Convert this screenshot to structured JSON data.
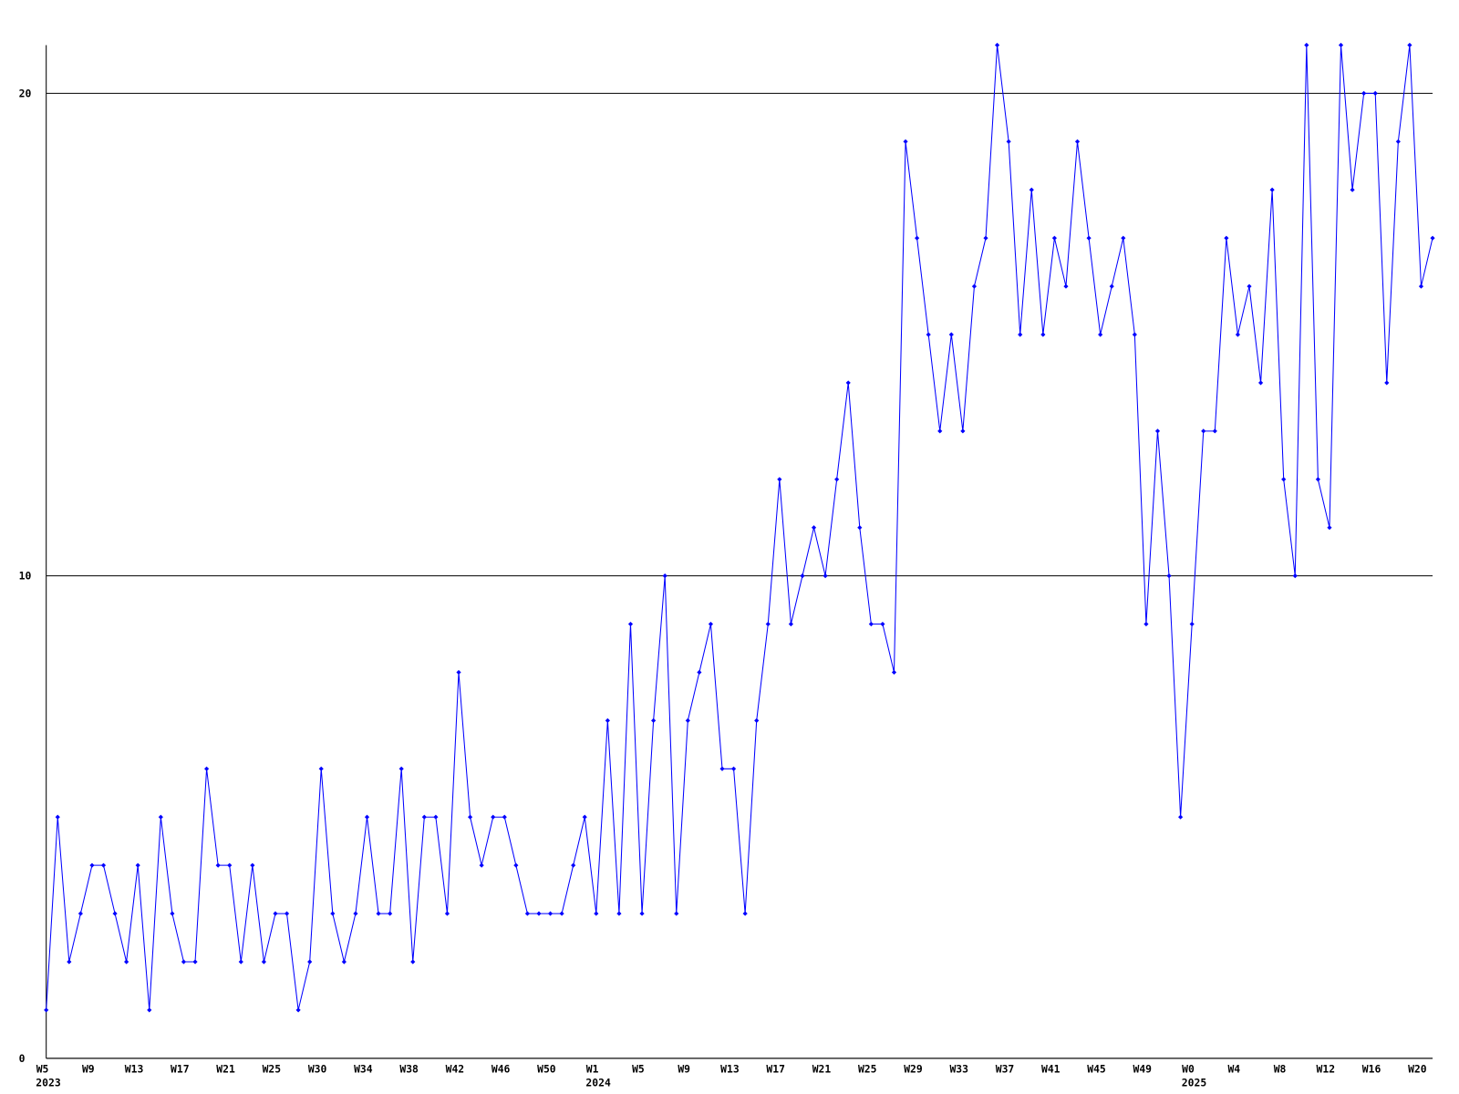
{
  "chart_data": {
    "type": "line",
    "categories": [
      "W5",
      null,
      null,
      null,
      "W9",
      null,
      null,
      null,
      "W13",
      null,
      null,
      null,
      "W17",
      null,
      null,
      null,
      "W21",
      null,
      null,
      null,
      "W25",
      null,
      null,
      null,
      "W30",
      null,
      null,
      null,
      "W34",
      null,
      null,
      null,
      "W38",
      null,
      null,
      null,
      "W42",
      null,
      null,
      null,
      "W46",
      null,
      null,
      null,
      "W50",
      null,
      null,
      null,
      "W1",
      null,
      null,
      null,
      "W5",
      null,
      null,
      null,
      "W9",
      null,
      null,
      null,
      "W13",
      null,
      null,
      null,
      "W17",
      null,
      null,
      null,
      "W21",
      null,
      null,
      null,
      "W25",
      null,
      null,
      null,
      "W29",
      null,
      null,
      null,
      "W33",
      null,
      null,
      null,
      "W37",
      null,
      null,
      null,
      "W41",
      null,
      null,
      null,
      "W45",
      null,
      null,
      null,
      "W49",
      null,
      null,
      null,
      "W0",
      null,
      null,
      null,
      "W4",
      null,
      null,
      null,
      "W8",
      null,
      null,
      null,
      "W12",
      null,
      null,
      null,
      "W16",
      null,
      null,
      null,
      "W20",
      null
    ],
    "years": [
      "2023",
      null,
      null,
      null,
      null,
      null,
      null,
      null,
      null,
      null,
      null,
      null,
      null,
      null,
      null,
      null,
      null,
      null,
      null,
      null,
      null,
      null,
      null,
      null,
      null,
      null,
      null,
      null,
      null,
      null,
      null,
      null,
      null,
      null,
      null,
      null,
      null,
      null,
      null,
      null,
      null,
      null,
      null,
      null,
      null,
      null,
      null,
      null,
      "2024",
      null,
      null,
      null,
      null,
      null,
      null,
      null,
      null,
      null,
      null,
      null,
      null,
      null,
      null,
      null,
      null,
      null,
      null,
      null,
      null,
      null,
      null,
      null,
      null,
      null,
      null,
      null,
      null,
      null,
      null,
      null,
      null,
      null,
      null,
      null,
      null,
      null,
      null,
      null,
      null,
      null,
      null,
      null,
      null,
      null,
      null,
      null,
      null,
      null,
      null,
      null,
      "2025",
      null,
      null,
      null,
      null,
      null,
      null,
      null,
      null,
      null,
      null,
      null,
      null,
      null,
      null,
      null,
      null,
      null,
      null,
      null,
      null,
      null
    ],
    "values": [
      1,
      5,
      2,
      3,
      4,
      4,
      3,
      2,
      4,
      1,
      5,
      3,
      2,
      2,
      6,
      4,
      4,
      2,
      4,
      2,
      3,
      3,
      1,
      2,
      6,
      3,
      2,
      3,
      5,
      3,
      3,
      6,
      2,
      5,
      5,
      3,
      8,
      5,
      4,
      5,
      5,
      4,
      3,
      3,
      3,
      3,
      4,
      5,
      3,
      7,
      3,
      9,
      3,
      7,
      10,
      3,
      7,
      8,
      9,
      6,
      6,
      3,
      7,
      9,
      12,
      9,
      10,
      11,
      10,
      12,
      14,
      11,
      9,
      9,
      8,
      19,
      17,
      15,
      13,
      15,
      13,
      16,
      17,
      21,
      19,
      15,
      18,
      15,
      17,
      16,
      19,
      17,
      15,
      16,
      17,
      15,
      9,
      13,
      10,
      5,
      9,
      13,
      13,
      17,
      15,
      16,
      14,
      18,
      12,
      10,
      21,
      12,
      11,
      21,
      18,
      20,
      20,
      14,
      19,
      21,
      16,
      17
    ],
    "color": "#0000ff",
    "ylim": [
      0,
      21
    ],
    "yticks": [
      0,
      10,
      20
    ],
    "grid": true
  }
}
